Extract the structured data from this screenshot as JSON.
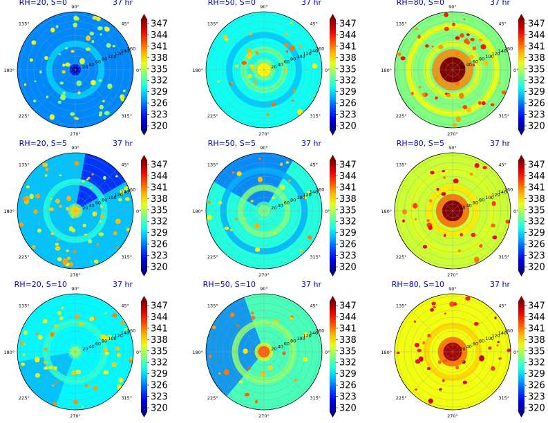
{
  "chart_data": {
    "type": "heatmap",
    "panel_grid": {
      "rows": 3,
      "cols": 3
    },
    "colormap": "jet",
    "title_color": "#0000cc",
    "time_label": "37 hr",
    "colorbar": {
      "vmin": 320,
      "vmax": 347,
      "ticks": [
        "347",
        "344",
        "341",
        "338",
        "335",
        "332",
        "329",
        "326",
        "323",
        "320"
      ]
    },
    "angular_ticks": [
      "90°",
      "45°",
      "0°",
      "315°",
      "270°",
      "225°",
      "180°",
      "135°"
    ],
    "radial_ticks": [
      "20",
      "40",
      "60",
      "80",
      "100",
      "120",
      "140",
      "160"
    ],
    "panels": [
      {
        "title": "RH=20, S=0",
        "rh": 20,
        "shear": 0,
        "base": 327.0,
        "core": 320.0,
        "core_radius": 0.06,
        "cell_count": 55,
        "cell_value": 336.0,
        "bands": [
          {
            "r": 0.45,
            "v": 329.0
          }
        ],
        "dark_sector": null
      },
      {
        "title": "RH=50, S=0",
        "rh": 50,
        "shear": 0,
        "base": 330.5,
        "core": 337.0,
        "core_radius": 0.12,
        "cell_count": 30,
        "cell_value": 339.0,
        "bands": [
          {
            "r": 0.35,
            "v": 333.0
          },
          {
            "r": 0.6,
            "v": 328.5
          }
        ],
        "dark_sector": null
      },
      {
        "title": "RH=80, S=0",
        "rh": 80,
        "shear": 0,
        "base": 333.5,
        "core": 347.0,
        "core_radius": 0.22,
        "cell_count": 45,
        "cell_value": 341.0,
        "bands": [
          {
            "r": 0.45,
            "v": 336.0
          },
          {
            "r": 0.75,
            "v": 336.5
          }
        ],
        "dark_sector": null
      },
      {
        "title": "RH=20, S=5",
        "rh": 20,
        "shear": 5,
        "base": 328.5,
        "core": 338.0,
        "core_radius": 0.08,
        "cell_count": 60,
        "cell_value": 337.5,
        "bands": [
          {
            "r": 0.5,
            "v": 331.0
          }
        ],
        "dark_sector": {
          "start": 30,
          "end": 80,
          "v": 323.5
        }
      },
      {
        "title": "RH=50, S=5",
        "rh": 50,
        "shear": 5,
        "base": 331.0,
        "core": 333.0,
        "core_radius": 0.1,
        "cell_count": 25,
        "cell_value": 338.0,
        "bands": [
          {
            "r": 0.4,
            "v": 333.5
          },
          {
            "r": 0.7,
            "v": 328.0
          }
        ],
        "dark_sector": {
          "start": 60,
          "end": 150,
          "v": 326.0
        }
      },
      {
        "title": "RH=80, S=5",
        "rh": 80,
        "shear": 5,
        "base": 335.5,
        "core": 347.0,
        "core_radius": 0.18,
        "cell_count": 30,
        "cell_value": 342.0,
        "bands": [
          {
            "r": 0.4,
            "v": 337.5
          },
          {
            "r": 0.7,
            "v": 336.0
          }
        ],
        "dark_sector": null
      },
      {
        "title": "RH=20, S=10",
        "rh": 20,
        "shear": 10,
        "base": 330.0,
        "core": 334.0,
        "core_radius": 0.08,
        "cell_count": 55,
        "cell_value": 338.0,
        "bands": [
          {
            "r": 0.5,
            "v": 331.5
          }
        ],
        "dark_sector": {
          "start": 190,
          "end": 250,
          "v": 328.0
        }
      },
      {
        "title": "RH=50, S=10",
        "rh": 50,
        "shear": 10,
        "base": 332.0,
        "core": 341.0,
        "core_radius": 0.1,
        "cell_count": 22,
        "cell_value": 339.0,
        "bands": [
          {
            "r": 0.5,
            "v": 334.0
          }
        ],
        "dark_sector": {
          "start": 110,
          "end": 230,
          "v": 326.5
        }
      },
      {
        "title": "RH=80, S=10",
        "rh": 80,
        "shear": 10,
        "base": 336.5,
        "core": 346.0,
        "core_radius": 0.16,
        "cell_count": 35,
        "cell_value": 343.0,
        "bands": [
          {
            "r": 0.45,
            "v": 338.0
          }
        ],
        "dark_sector": null
      }
    ]
  }
}
